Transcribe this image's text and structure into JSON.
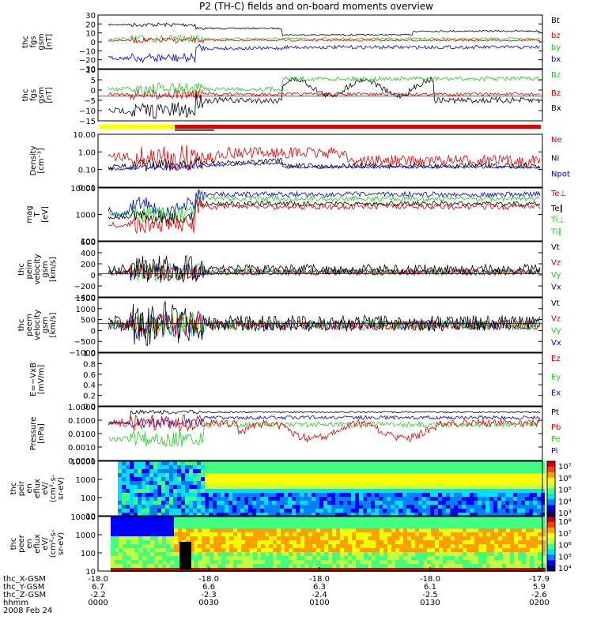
{
  "title": "P2 (TH-C) fields and on-board moments overview",
  "colors": {
    "black": "#000000",
    "red": "#e00000",
    "green": "#22cc22",
    "blue": "#0000cc",
    "yellow": "#ffff00"
  },
  "panels": [
    {
      "id": "fgs-btot",
      "ylabel": [
        "thc",
        "fgs",
        "gsm",
        "[nT]"
      ],
      "ticks": [
        "30",
        "20",
        "10",
        "0",
        "−10",
        "−20",
        "−30"
      ],
      "legend": [
        {
          "t": "Bt",
          "c": "black"
        },
        {
          "t": "bz",
          "c": "red"
        },
        {
          "t": "by",
          "c": "green"
        },
        {
          "t": "bx",
          "c": "blue"
        }
      ]
    },
    {
      "id": "fgs-bzoom",
      "ylabel": [
        "thc",
        "fgs",
        "gsm",
        "[nT]"
      ],
      "ticks": [
        "10",
        "5",
        "0",
        "−5",
        "−10",
        "−15"
      ],
      "legend": [
        {
          "t": "Bz",
          "c": "green"
        },
        {
          "t": "Bz",
          "c": "red"
        },
        {
          "t": "Bx",
          "c": "black"
        }
      ]
    },
    {
      "id": "density",
      "ylabel": [
        "Density",
        "[cm⁻³]"
      ],
      "ticks": [
        "10.00",
        "1.00",
        "0.10",
        "0.01"
      ],
      "legend": [
        {
          "t": "Ne",
          "c": "red"
        },
        {
          "t": "Ni",
          "c": "black"
        },
        {
          "t": "Npot",
          "c": "blue"
        }
      ]
    },
    {
      "id": "temperature",
      "ylabel": [
        "mag",
        "T",
        "[eV]"
      ],
      "ticks": [
        "10000",
        "1000",
        "100"
      ],
      "legend": [
        {
          "t": "Te⊥",
          "c": "red"
        },
        {
          "t": "Te∥",
          "c": "black"
        },
        {
          "t": "Ti⊥",
          "c": "green"
        },
        {
          "t": "Ti∥",
          "c": "green"
        }
      ]
    },
    {
      "id": "ion-velocity",
      "ylabel": [
        "thc",
        "peim",
        "velocity",
        "gsm",
        "[km/s]"
      ],
      "ticks": [
        "600",
        "400",
        "200",
        "0",
        "−200",
        "−400"
      ],
      "legend": [
        {
          "t": "Vt",
          "c": "black"
        },
        {
          "t": "Vz",
          "c": "red"
        },
        {
          "t": "Vy",
          "c": "green"
        },
        {
          "t": "Vx",
          "c": "blue"
        }
      ]
    },
    {
      "id": "electron-velocity",
      "ylabel": [
        "thc",
        "peem",
        "velocity",
        "gsm",
        "[km/s]"
      ],
      "ticks": [
        "1500",
        "1000",
        "500",
        "0",
        "−500",
        "−1000"
      ],
      "legend": [
        {
          "t": "Vt",
          "c": "black"
        },
        {
          "t": "Vz",
          "c": "red"
        },
        {
          "t": "Vy",
          "c": "green"
        },
        {
          "t": "Vx",
          "c": "blue"
        }
      ]
    },
    {
      "id": "efield",
      "ylabel": [
        "E=−VxB",
        "[mV/m]"
      ],
      "ticks": [
        "1.0",
        "0.8",
        "0.6",
        "0.4",
        "0.2",
        "0.0"
      ],
      "legend": [
        {
          "t": "Ez",
          "c": "red"
        },
        {
          "t": "Ey",
          "c": "green"
        },
        {
          "t": "Ex",
          "c": "blue"
        }
      ]
    },
    {
      "id": "pressure",
      "ylabel": [
        "Pressure",
        "[nPa]"
      ],
      "ticks": [
        "1.0000",
        "0.1000",
        "0.0100",
        "0.0010",
        "0.0001"
      ],
      "legend": [
        {
          "t": "Pt",
          "c": "black"
        },
        {
          "t": "Pb",
          "c": "red"
        },
        {
          "t": "Pe",
          "c": "green"
        },
        {
          "t": "Pi",
          "c": "blue"
        }
      ]
    },
    {
      "id": "ion-spectrogram",
      "ylabel": [
        "thc",
        "peir",
        "en",
        "eflux",
        "eV/",
        "(cm²-s-",
        "sr-eV)"
      ],
      "ticks": [
        "10000",
        "1000",
        "100",
        "10"
      ],
      "colorbar": [
        "10⁷",
        "10⁶",
        "10⁵",
        "10⁴",
        "10³"
      ]
    },
    {
      "id": "electron-spectrogram",
      "ylabel": [
        "thc",
        "peer",
        "en",
        "eflux",
        "eV/",
        "(cm²-s-",
        "sr-eV)"
      ],
      "ticks": [
        "10000",
        "1000",
        "100",
        "10"
      ],
      "colorbar": [
        "10⁸",
        "10⁷",
        "10⁶",
        "10⁵",
        "10⁴"
      ]
    }
  ],
  "xaxis": {
    "rows": [
      {
        "label": "thc_X-GSM",
        "values": [
          "-18.0",
          "-18.0",
          "-18.0",
          "-18.0",
          "-17.9"
        ]
      },
      {
        "label": "thc_Y-GSM",
        "values": [
          "6.7",
          "6.6",
          "6.3",
          "6.1",
          "5.9"
        ]
      },
      {
        "label": "thc_Z-GSM",
        "values": [
          "-2.2",
          "-2.3",
          "-2.4",
          "-2.5",
          "-2.6"
        ]
      },
      {
        "label": "hhmm",
        "values": [
          "0000",
          "0030",
          "0100",
          "0130",
          "0200"
        ]
      }
    ],
    "date": "2008 Feb 24"
  },
  "chart_data": {
    "type": "line",
    "title": "P2 (TH-C) fields and on-board moments overview",
    "x": [
      "0000",
      "0030",
      "0100",
      "0130",
      "0200"
    ],
    "date": "2008 Feb 24",
    "series": [
      {
        "name": "Bt",
        "panel": "fgs-btot",
        "values": [
          22,
          20,
          12,
          10,
          14
        ]
      },
      {
        "name": "bz",
        "panel": "fgs-btot",
        "values": [
          3,
          5,
          4,
          1,
          1
        ]
      },
      {
        "name": "by",
        "panel": "fgs-btot",
        "values": [
          5,
          3,
          2,
          2,
          2
        ]
      },
      {
        "name": "bx",
        "panel": "fgs-btot",
        "values": [
          -15,
          -10,
          -2,
          -5,
          -6
        ]
      },
      {
        "name": "Ne",
        "panel": "density",
        "values": [
          0.6,
          1.0,
          0.5,
          0.3,
          0.25
        ]
      },
      {
        "name": "Ni",
        "panel": "density",
        "values": [
          0.3,
          0.25,
          0.2,
          0.2,
          0.2
        ]
      },
      {
        "name": "Npot",
        "panel": "density",
        "values": [
          0.3,
          0.2,
          0.2,
          0.2,
          0.2
        ]
      },
      {
        "name": "Pt",
        "panel": "pressure",
        "values": [
          0.3,
          0.3,
          0.25,
          0.2,
          0.2
        ]
      },
      {
        "name": "Pb",
        "panel": "pressure",
        "values": [
          0.05,
          0.05,
          0.03,
          0.03,
          0.03
        ]
      },
      {
        "name": "Pe",
        "panel": "pressure",
        "values": [
          0.03,
          0.02,
          0.03,
          0.03,
          0.03
        ]
      },
      {
        "name": "Pi",
        "panel": "pressure",
        "values": [
          0.05,
          0.1,
          0.1,
          0.07,
          0.06
        ]
      }
    ]
  }
}
